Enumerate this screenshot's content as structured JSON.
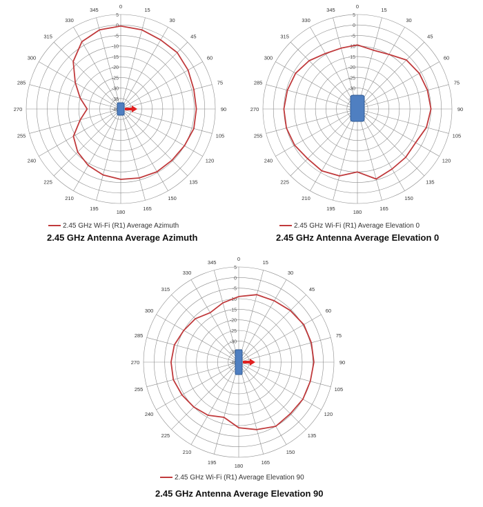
{
  "chart_data": [
    {
      "type": "polar-line",
      "title": "2.45 GHz Antenna Average Azimuth",
      "series": [
        {
          "name": "2.45 GHz Wi-Fi (R1) Average Azimuth",
          "color": "#c0393b",
          "angles": [
            0,
            15,
            30,
            45,
            60,
            75,
            90,
            105,
            120,
            135,
            150,
            165,
            180,
            195,
            210,
            225,
            240,
            255,
            270,
            285,
            300,
            315,
            330,
            345,
            360
          ],
          "values": [
            -0.5,
            -1,
            -2,
            -2,
            -3,
            -4,
            -4,
            -4,
            -5,
            -5.5,
            -5.5,
            -6,
            -6.5,
            -7.5,
            -9,
            -11,
            -14,
            -20,
            -24,
            -20,
            -15,
            -8,
            -3,
            -1,
            -0.5
          ]
        }
      ],
      "angle_ticks": [
        0,
        15,
        30,
        45,
        60,
        75,
        90,
        105,
        120,
        135,
        150,
        165,
        180,
        195,
        210,
        225,
        240,
        255,
        270,
        285,
        300,
        315,
        330,
        345
      ],
      "radial_ticks": [
        5,
        0,
        -5,
        -10,
        -15,
        -20,
        -25,
        -30,
        -35,
        -40
      ],
      "rlim": [
        -40,
        5
      ],
      "orientation": "clockwise, 0 at top",
      "device_icon": "antenna-with-arrow"
    },
    {
      "type": "polar-line",
      "title": "2.45 GHz Antenna Average Elevation 0",
      "series": [
        {
          "name": "2.45 GHz Wi-Fi (R1) Average Elevation 0",
          "color": "#c0393b",
          "angles": [
            0,
            15,
            30,
            45,
            60,
            75,
            90,
            105,
            120,
            135,
            150,
            165,
            180,
            195,
            210,
            225,
            240,
            255,
            270,
            285,
            300,
            315,
            330,
            345,
            360
          ],
          "values": [
            -9.5,
            -11,
            -10,
            -7,
            -6,
            -5.5,
            -5,
            -6,
            -8,
            -7.5,
            -7,
            -5.5,
            -10,
            -7,
            -6,
            -6.5,
            -5.5,
            -5,
            -5,
            -5.5,
            -6,
            -7.5,
            -9.5,
            -10,
            -9.5
          ]
        }
      ],
      "angle_ticks": [
        0,
        15,
        30,
        45,
        60,
        75,
        90,
        105,
        120,
        135,
        150,
        165,
        180,
        195,
        210,
        225,
        240,
        255,
        270,
        285,
        300,
        315,
        330,
        345
      ],
      "radial_ticks": [
        5,
        0,
        -5,
        -10,
        -15,
        -20,
        -25,
        -30,
        -35,
        -40
      ],
      "rlim": [
        -40,
        5
      ],
      "orientation": "clockwise, 0 at top",
      "device_icon": "antenna-front"
    },
    {
      "type": "polar-line",
      "title": "2.45 GHz Antenna Average Elevation 90",
      "series": [
        {
          "name": "2.45 GHz Wi-Fi (R1) Average Elevation 90",
          "color": "#c0393b",
          "angles": [
            0,
            15,
            30,
            45,
            60,
            75,
            90,
            105,
            120,
            135,
            150,
            165,
            180,
            195,
            210,
            225,
            240,
            255,
            270,
            285,
            300,
            315,
            330,
            345,
            360
          ],
          "values": [
            -9,
            -7,
            -6.5,
            -5.5,
            -4.5,
            -4.5,
            -4.5,
            -5,
            -5,
            -5.5,
            -5,
            -7,
            -9,
            -13,
            -11,
            -10,
            -9,
            -8,
            -8,
            -8.5,
            -10,
            -11,
            -13,
            -11,
            -9
          ]
        }
      ],
      "angle_ticks": [
        0,
        15,
        30,
        45,
        60,
        75,
        90,
        105,
        120,
        135,
        150,
        165,
        180,
        195,
        210,
        225,
        240,
        255,
        270,
        285,
        300,
        315,
        330,
        345
      ],
      "radial_ticks": [
        5,
        0,
        -5,
        -10,
        -15,
        -20,
        -25,
        -30,
        -35,
        -40
      ],
      "rlim": [
        -40,
        5
      ],
      "orientation": "clockwise, 0 at top",
      "device_icon": "antenna-with-arrow"
    }
  ]
}
